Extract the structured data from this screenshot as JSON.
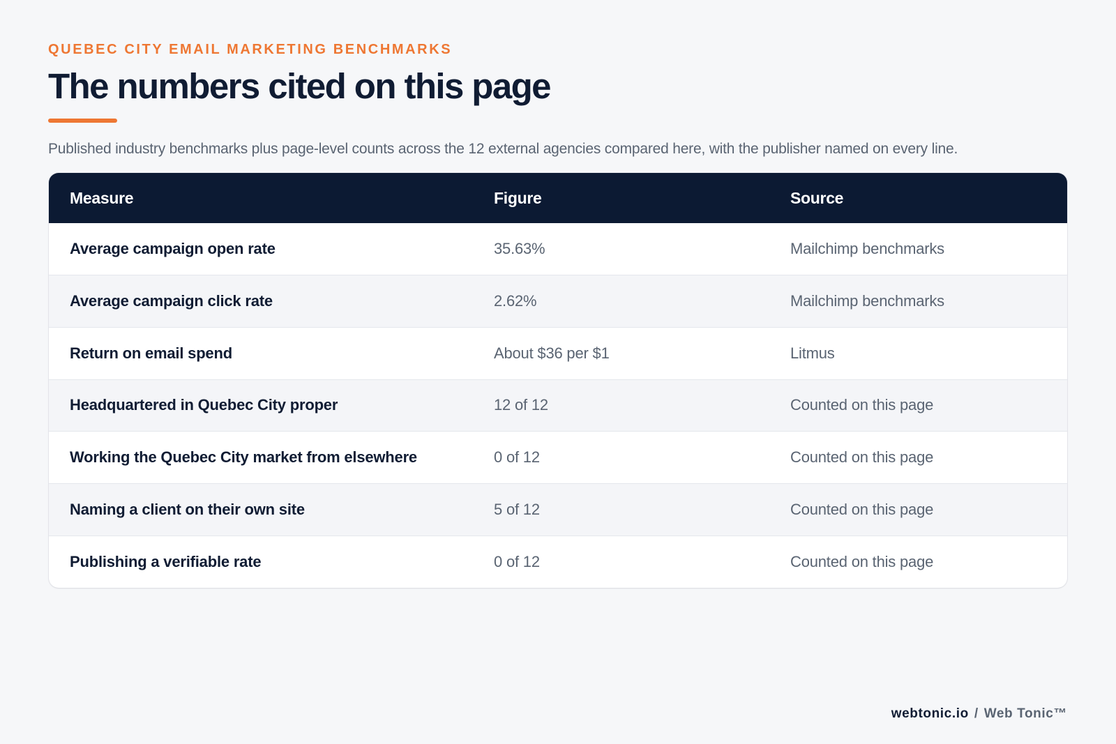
{
  "header": {
    "eyebrow": "QUEBEC CITY EMAIL MARKETING BENCHMARKS",
    "title": "The numbers cited on this page",
    "subtitle": "Published industry benchmarks plus page-level counts across the 12 external agencies compared here, with the publisher named on every line."
  },
  "table": {
    "columns": [
      "Measure",
      "Figure",
      "Source"
    ],
    "rows": [
      {
        "measure": "Average campaign open rate",
        "figure": "35.63%",
        "source": "Mailchimp benchmarks"
      },
      {
        "measure": "Average campaign click rate",
        "figure": "2.62%",
        "source": "Mailchimp benchmarks"
      },
      {
        "measure": "Return on email spend",
        "figure": "About $36 per $1",
        "source": "Litmus"
      },
      {
        "measure": "Headquartered in Quebec City proper",
        "figure": "12 of 12",
        "source": "Counted on this page"
      },
      {
        "measure": "Working the Quebec City market from elsewhere",
        "figure": "0 of 12",
        "source": "Counted on this page"
      },
      {
        "measure": "Naming a client on their own site",
        "figure": "5 of 12",
        "source": "Counted on this page"
      },
      {
        "measure": "Publishing a verifiable rate",
        "figure": "0 of 12",
        "source": "Counted on this page"
      }
    ]
  },
  "footer": {
    "domain": "webtonic.io",
    "separator": "/",
    "brand": "Web Tonic™"
  },
  "colors": {
    "accent": "#ee7733",
    "header_bg": "#0c1a33",
    "text_dark": "#101c33",
    "text_muted": "#5a6472",
    "page_bg": "#f6f7f9"
  }
}
